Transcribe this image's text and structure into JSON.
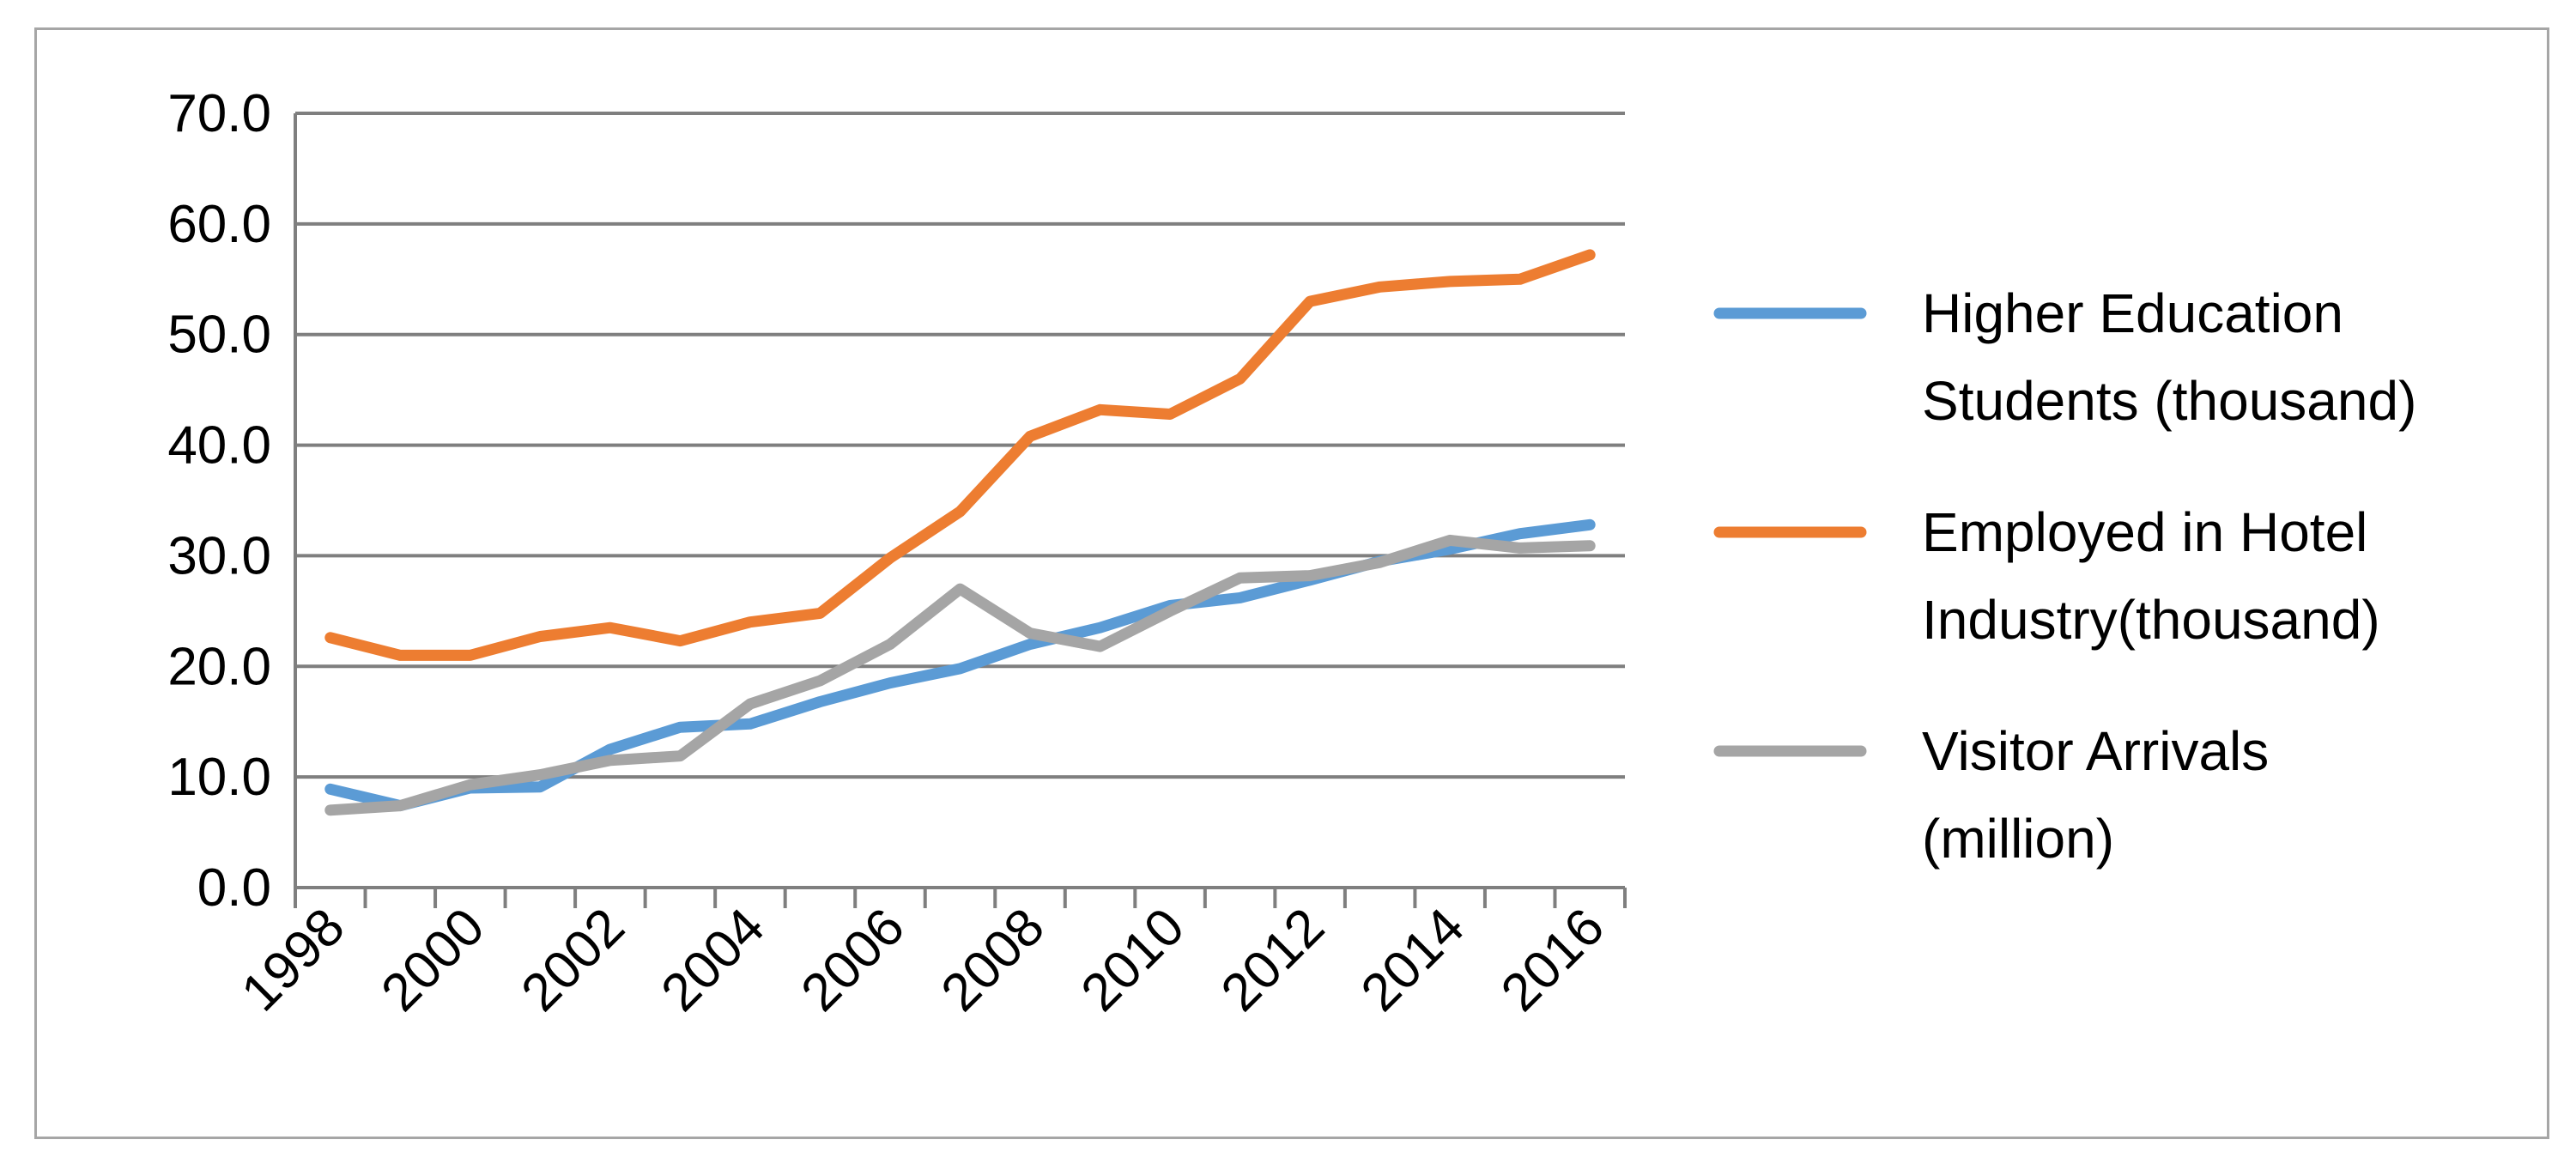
{
  "chart_data": {
    "type": "line",
    "title": "",
    "xlabel": "",
    "ylabel": "",
    "x": [
      1998,
      1999,
      2000,
      2001,
      2002,
      2003,
      2004,
      2005,
      2006,
      2007,
      2008,
      2009,
      2010,
      2011,
      2012,
      2013,
      2014,
      2015,
      2016
    ],
    "x_tick_labels": [
      "1998",
      "2000",
      "2002",
      "2004",
      "2006",
      "2008",
      "2010",
      "2012",
      "2014",
      "2016"
    ],
    "y_tick_labels": [
      "0.0",
      "10.0",
      "20.0",
      "30.0",
      "40.0",
      "50.0",
      "60.0",
      "70.0"
    ],
    "ylim": [
      0,
      70
    ],
    "grid": "horizontal",
    "legend_position": "right",
    "series": [
      {
        "name_lines": [
          "Higher Education",
          "Students (thousand)"
        ],
        "color": "#5b9bd5",
        "values": [
          8.9,
          7.4,
          9.0,
          9.1,
          12.5,
          14.5,
          14.8,
          16.8,
          18.5,
          19.8,
          22.0,
          23.5,
          25.5,
          26.2,
          27.8,
          29.5,
          30.6,
          32.0,
          32.8
        ]
      },
      {
        "name_lines": [
          "Employed in Hotel",
          "Industry(thousand)"
        ],
        "color": "#ed7d31",
        "values": [
          22.6,
          21.0,
          21.0,
          22.7,
          23.5,
          22.3,
          24.0,
          24.8,
          29.8,
          34.0,
          40.8,
          43.2,
          42.8,
          46.0,
          53.0,
          54.3,
          54.8,
          55.0,
          57.2
        ]
      },
      {
        "name_lines": [
          "Visitor Arrivals",
          "(million)"
        ],
        "color": "#a5a5a5",
        "values": [
          7.0,
          7.4,
          9.3,
          10.2,
          11.5,
          11.9,
          16.6,
          18.7,
          22.0,
          27.0,
          23.0,
          21.8,
          25.0,
          28.0,
          28.2,
          29.4,
          31.4,
          30.7,
          30.9
        ]
      }
    ]
  }
}
